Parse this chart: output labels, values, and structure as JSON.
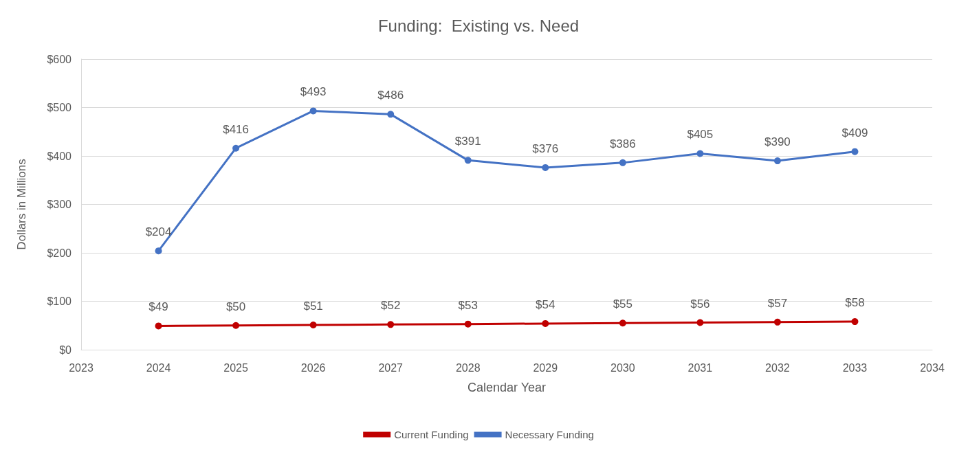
{
  "chart_data": {
    "type": "line",
    "title": "Funding:  Existing vs. Need",
    "xlabel": "Calendar Year",
    "ylabel": "Dollars in Millions",
    "x": [
      2024,
      2025,
      2026,
      2027,
      2028,
      2029,
      2030,
      2031,
      2032,
      2033
    ],
    "xlim": [
      2023,
      2034
    ],
    "xticks": [
      2023,
      2024,
      2025,
      2026,
      2027,
      2028,
      2029,
      2030,
      2031,
      2032,
      2033,
      2034
    ],
    "ylim": [
      0,
      600
    ],
    "yticks": [
      {
        "value": 0,
        "label": "$0"
      },
      {
        "value": 100,
        "label": "$100"
      },
      {
        "value": 200,
        "label": "$200"
      },
      {
        "value": 300,
        "label": "$300"
      },
      {
        "value": 400,
        "label": "$400"
      },
      {
        "value": 500,
        "label": "$500"
      },
      {
        "value": 600,
        "label": "$600"
      }
    ],
    "series": [
      {
        "name": "Current Funding",
        "color": "#c00000",
        "values": [
          49,
          50,
          51,
          52,
          53,
          54,
          55,
          56,
          57,
          58
        ],
        "value_labels": [
          "$49",
          "$50",
          "$51",
          "$52",
          "$53",
          "$54",
          "$55",
          "$56",
          "$57",
          "$58"
        ]
      },
      {
        "name": "Necessary Funding",
        "color": "#4472c4",
        "values": [
          204,
          416,
          493,
          486,
          391,
          376,
          386,
          405,
          390,
          409
        ],
        "value_labels": [
          "$204",
          "$416",
          "$493",
          "$486",
          "$391",
          "$376",
          "$386",
          "$405",
          "$390",
          "$409"
        ]
      }
    ],
    "grid": "y",
    "legend": "bottom",
    "marker": "circle",
    "line_style": "solid"
  }
}
